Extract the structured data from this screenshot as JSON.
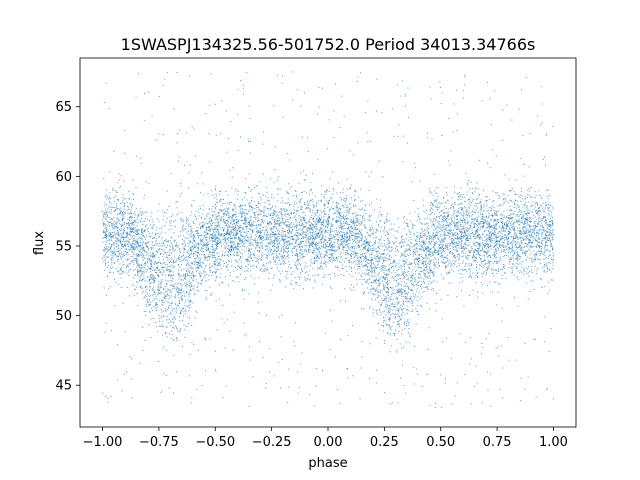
{
  "chart_data": {
    "type": "scatter",
    "title": "1SWASPJ134325.56-501752.0 Period 34013.34766s",
    "xlabel": "phase",
    "ylabel": "flux",
    "xlim": [
      -1.1,
      1.1
    ],
    "ylim": [
      42.0,
      68.5
    ],
    "xticks": [
      -1.0,
      -0.75,
      -0.5,
      -0.25,
      0.0,
      0.25,
      0.5,
      0.75,
      1.0
    ],
    "xtick_labels": [
      "−1.00",
      "−0.75",
      "−0.50",
      "−0.25",
      "0.00",
      "0.25",
      "0.50",
      "0.75",
      "1.00"
    ],
    "yticks": [
      45,
      50,
      55,
      60,
      65
    ],
    "ytick_labels": [
      "45",
      "50",
      "55",
      "60",
      "65"
    ],
    "grid": false,
    "marker_color": "#1f77b4",
    "series": [
      {
        "phase_range": [
          -1.0,
          1.0
        ],
        "period_in_phase": 1.0,
        "baseline_flux": 55.8,
        "dip_center_phase": [
          -0.7,
          0.3
        ],
        "dip_depth": 5.0,
        "core_scatter": 1.5,
        "outlier_range": [
          43.3,
          67.5
        ]
      }
    ]
  }
}
